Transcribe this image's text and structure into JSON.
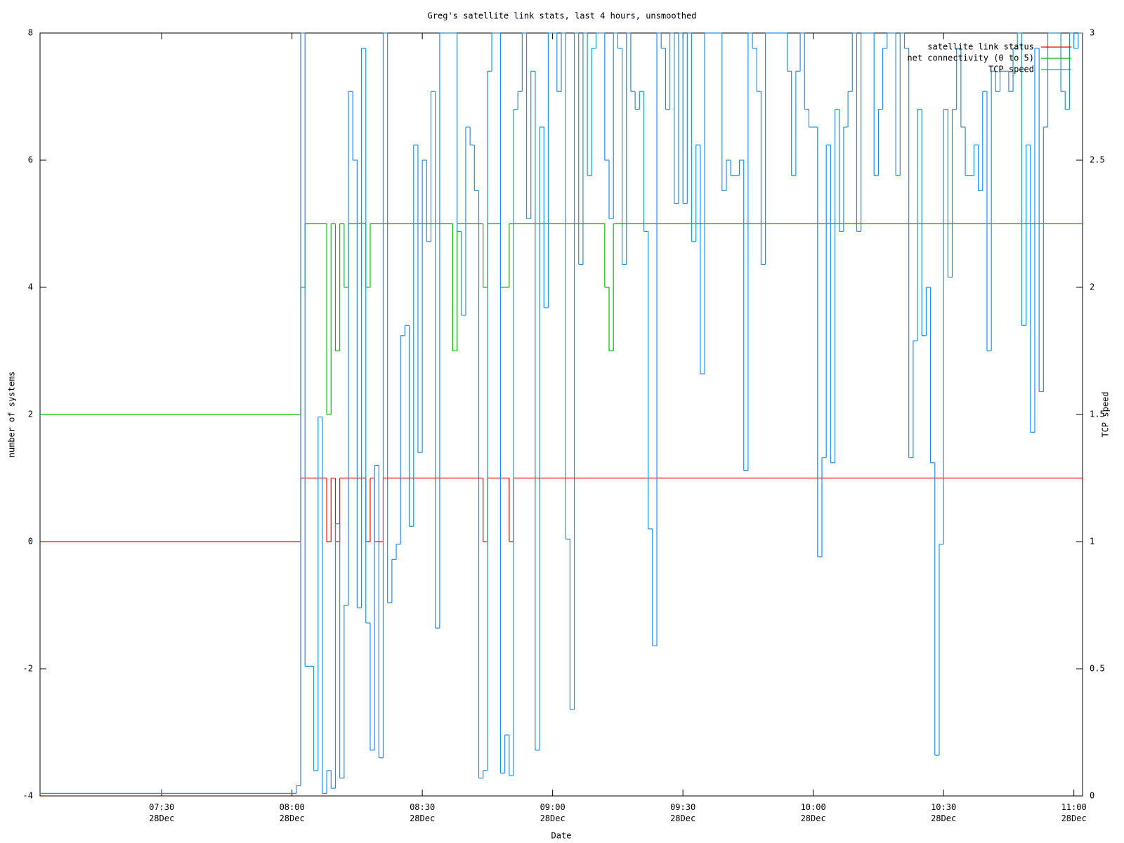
{
  "chart_data": {
    "type": "line",
    "drawstyle": "steps",
    "title": "Greg's satellite link stats, last 4 hours, unsmoothed",
    "xlabel": "Date",
    "ylabel": "number of systems",
    "y2label": "TCP speed",
    "xlim": [
      "07:02",
      "11:02"
    ],
    "xticks": [
      {
        "value": "07:30",
        "label": "07:30\n28Dec"
      },
      {
        "value": "08:00",
        "label": "08:00\n28Dec"
      },
      {
        "value": "08:30",
        "label": "08:30\n28Dec"
      },
      {
        "value": "09:00",
        "label": "09:00\n28Dec"
      },
      {
        "value": "09:30",
        "label": "09:30\n28Dec"
      },
      {
        "value": "10:00",
        "label": "10:00\n28Dec"
      },
      {
        "value": "10:30",
        "label": "10:30\n28Dec"
      },
      {
        "value": "11:00",
        "label": "11:00\n28Dec"
      }
    ],
    "ylim": [
      -4,
      8
    ],
    "yticks": [
      -4,
      -2,
      0,
      2,
      4,
      6,
      8
    ],
    "y2lim": [
      0,
      3
    ],
    "y2ticks": [
      0,
      0.5,
      1,
      1.5,
      2,
      2.5,
      3
    ],
    "legend": "top right",
    "series": [
      {
        "name": "satellite link status",
        "color": "#ff0000",
        "axis": "y",
        "x": [
          "07:02",
          "08:02",
          "08:08",
          "08:09",
          "08:10",
          "08:11",
          "08:17",
          "08:18",
          "08:19",
          "08:21",
          "08:44",
          "08:45",
          "08:50",
          "08:51",
          "11:02"
        ],
        "values": [
          0,
          1,
          0,
          1,
          0,
          1,
          0,
          1,
          0,
          1,
          0,
          1,
          0,
          1,
          1
        ]
      },
      {
        "name": "net connectivity (0 to 5)",
        "color": "#00c000",
        "axis": "y",
        "x": [
          "07:02",
          "08:02",
          "08:03",
          "08:08",
          "08:09",
          "08:10",
          "08:11",
          "08:12",
          "08:13",
          "08:17",
          "08:18",
          "08:37",
          "08:38",
          "08:44",
          "08:45",
          "08:48",
          "08:50",
          "09:12",
          "09:13",
          "09:14",
          "11:02"
        ],
        "values": [
          2,
          4,
          5,
          2,
          5,
          3,
          5,
          4,
          5,
          4,
          5,
          3,
          5,
          4,
          5,
          4,
          5,
          4,
          3,
          5,
          5
        ]
      },
      {
        "name": "TCP speed",
        "color": "#1e8ff0",
        "axis": "y2",
        "x": [
          "07:02",
          "08:01",
          "08:02",
          "08:03",
          "08:05",
          "08:06",
          "08:07",
          "08:08",
          "08:09",
          "08:10",
          "08:11",
          "08:12",
          "08:13",
          "08:14",
          "08:15",
          "08:16",
          "08:17",
          "08:18",
          "08:19",
          "08:20",
          "08:21",
          "08:22",
          "08:23",
          "08:24",
          "08:25",
          "08:26",
          "08:27",
          "08:28",
          "08:29",
          "08:30",
          "08:31",
          "08:32",
          "08:33",
          "08:34",
          "08:38",
          "08:39",
          "08:40",
          "08:41",
          "08:42",
          "08:43",
          "08:44",
          "08:45",
          "08:46",
          "08:48",
          "08:49",
          "08:50",
          "08:51",
          "08:52",
          "08:53",
          "08:54",
          "08:55",
          "08:56",
          "08:57",
          "08:58",
          "08:59",
          "09:01",
          "09:02",
          "09:03",
          "09:04",
          "09:05",
          "09:06",
          "09:07",
          "09:08",
          "09:09",
          "09:10",
          "09:12",
          "09:13",
          "09:14",
          "09:15",
          "09:16",
          "09:17",
          "09:18",
          "09:19",
          "09:20",
          "09:21",
          "09:22",
          "09:23",
          "09:24",
          "09:25",
          "09:26",
          "09:27",
          "09:28",
          "09:29",
          "09:30",
          "09:31",
          "09:32",
          "09:33",
          "09:34",
          "09:35",
          "09:39",
          "09:40",
          "09:41",
          "09:43",
          "09:44",
          "09:45",
          "09:46",
          "09:47",
          "09:48",
          "09:49",
          "09:54",
          "09:55",
          "09:56",
          "09:57",
          "09:58",
          "09:59",
          "10:01",
          "10:02",
          "10:03",
          "10:04",
          "10:05",
          "10:06",
          "10:07",
          "10:08",
          "10:09",
          "10:10",
          "10:11",
          "10:14",
          "10:15",
          "10:16",
          "10:17",
          "10:19",
          "10:20",
          "10:21",
          "10:22",
          "10:23",
          "10:24",
          "10:25",
          "10:26",
          "10:27",
          "10:28",
          "10:29",
          "10:30",
          "10:31",
          "10:32",
          "10:33",
          "10:34",
          "10:35",
          "10:37",
          "10:38",
          "10:39",
          "10:40",
          "10:41",
          "10:42",
          "10:43",
          "10:45",
          "10:46",
          "10:47",
          "10:48",
          "10:49",
          "10:50",
          "10:51",
          "10:52",
          "10:53",
          "10:54",
          "10:57",
          "10:58",
          "10:59",
          "11:00",
          "11:01",
          "11:02"
        ],
        "values": [
          0.01,
          0.04,
          3,
          0.51,
          0.1,
          1.49,
          0.01,
          0.1,
          0.03,
          1.07,
          0.07,
          0.75,
          2.77,
          2.5,
          0.74,
          2.94,
          0.68,
          0.18,
          1.3,
          0.15,
          3,
          0.76,
          0.93,
          0.99,
          1.81,
          1.85,
          1.06,
          2.56,
          1.35,
          2.5,
          2.18,
          2.77,
          0.66,
          3,
          2.22,
          1.89,
          2.63,
          2.56,
          2.38,
          0.07,
          0.1,
          2.85,
          3,
          0.09,
          0.24,
          0.08,
          2.7,
          2.77,
          3,
          2.27,
          2.85,
          0.18,
          2.63,
          1.92,
          3,
          2.77,
          3,
          1.01,
          0.34,
          3,
          2.09,
          3,
          2.44,
          2.94,
          3,
          2.5,
          2.27,
          3,
          2.94,
          2.09,
          3,
          2.77,
          2.7,
          2.77,
          2.22,
          1.05,
          0.59,
          3,
          2.94,
          2.7,
          3,
          2.33,
          3,
          2.33,
          3,
          2.18,
          2.56,
          1.66,
          3,
          2.38,
          2.5,
          2.44,
          2.5,
          1.28,
          3,
          2.94,
          2.77,
          2.09,
          3,
          2.85,
          2.44,
          2.85,
          3,
          2.7,
          2.63,
          0.94,
          1.33,
          2.56,
          1.31,
          2.7,
          2.22,
          2.63,
          2.77,
          3,
          2.22,
          3,
          2.44,
          2.7,
          2.94,
          3,
          2.44,
          3,
          2.94,
          1.33,
          1.79,
          2.7,
          1.81,
          2,
          1.31,
          0.16,
          0.99,
          2.7,
          2.04,
          2.7,
          2.94,
          2.63,
          2.44,
          2.56,
          2.38,
          2.77,
          1.75,
          2.85,
          2.77,
          2.85,
          2.77,
          2.94,
          3,
          1.85,
          2.56,
          1.43,
          2.94,
          1.59,
          2.63,
          3,
          2.77,
          2.7,
          3,
          2.94,
          3,
          3
        ]
      }
    ]
  }
}
